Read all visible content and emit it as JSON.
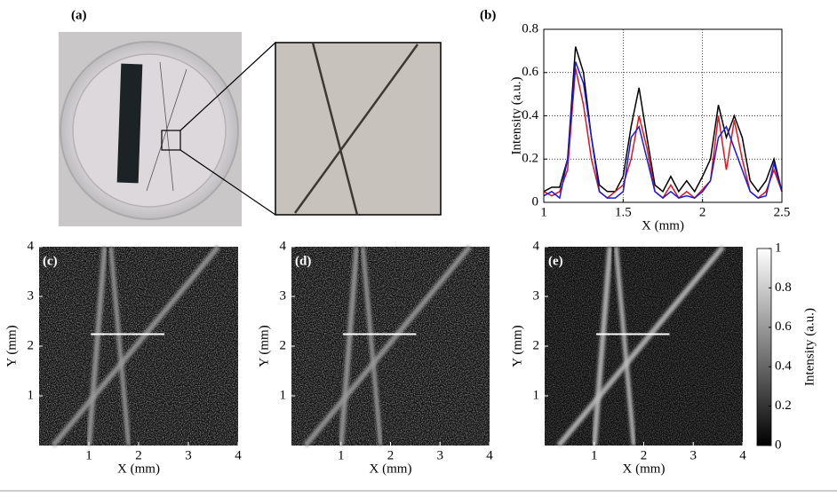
{
  "chart_data": [
    {
      "type": "line",
      "label": "(b)",
      "x_label": "X (mm)",
      "y_label": "Intensity (a.u.)",
      "x": [
        1.0,
        1.05,
        1.1,
        1.15,
        1.2,
        1.25,
        1.3,
        1.35,
        1.4,
        1.45,
        1.5,
        1.55,
        1.6,
        1.65,
        1.7,
        1.75,
        1.8,
        1.85,
        1.9,
        1.95,
        2.0,
        2.05,
        2.1,
        2.15,
        2.2,
        2.25,
        2.3,
        2.35,
        2.4,
        2.45,
        2.5
      ],
      "series": [
        {
          "color": "#000000",
          "values": [
            0.05,
            0.07,
            0.07,
            0.2,
            0.72,
            0.6,
            0.3,
            0.08,
            0.05,
            0.05,
            0.12,
            0.35,
            0.53,
            0.3,
            0.08,
            0.05,
            0.12,
            0.05,
            0.1,
            0.05,
            0.12,
            0.2,
            0.45,
            0.3,
            0.4,
            0.3,
            0.1,
            0.05,
            0.1,
            0.2,
            0.05
          ]
        },
        {
          "color": "#e0141e",
          "values": [
            0.05,
            0.03,
            0.05,
            0.15,
            0.62,
            0.45,
            0.2,
            0.05,
            0.02,
            0.05,
            0.08,
            0.2,
            0.4,
            0.25,
            0.05,
            0.02,
            0.08,
            0.02,
            0.05,
            0.02,
            0.06,
            0.1,
            0.4,
            0.15,
            0.38,
            0.2,
            0.05,
            0.02,
            0.05,
            0.15,
            0.05
          ]
        },
        {
          "color": "#1a1ae0",
          "values": [
            0.03,
            0.05,
            0.02,
            0.2,
            0.65,
            0.55,
            0.3,
            0.05,
            0.02,
            0.02,
            0.05,
            0.3,
            0.35,
            0.2,
            0.05,
            0.02,
            0.05,
            0.02,
            0.03,
            0.02,
            0.05,
            0.1,
            0.3,
            0.35,
            0.25,
            0.15,
            0.05,
            0.02,
            0.03,
            0.18,
            0.05
          ]
        }
      ],
      "xlim": [
        1,
        2.5
      ],
      "xticks": [
        1,
        1.5,
        2,
        2.5
      ],
      "ylim": [
        0,
        0.8
      ],
      "yticks": [
        0,
        0.2,
        0.4,
        0.6,
        0.8
      ],
      "grid": true
    },
    {
      "type": "image",
      "label": "(c)",
      "x_label": "X (mm)",
      "y_label": "Y (mm)",
      "xlim": [
        0,
        4
      ],
      "xticks": [
        1,
        2,
        3,
        4
      ],
      "ylim": [
        0,
        4
      ],
      "yticks": [
        1,
        2,
        3,
        4
      ]
    },
    {
      "type": "image",
      "label": "(d)",
      "x_label": "X (mm)",
      "y_label": "Y (mm)",
      "xlim": [
        0,
        4
      ],
      "xticks": [
        1,
        2,
        3,
        4
      ],
      "ylim": [
        0,
        4
      ],
      "yticks": [
        1,
        2,
        3,
        4
      ]
    },
    {
      "type": "image",
      "label": "(e)",
      "x_label": "X (mm)",
      "y_label": "Y (mm)",
      "xlim": [
        0,
        4
      ],
      "xticks": [
        1,
        2,
        3,
        4
      ],
      "ylim": [
        0,
        4
      ],
      "yticks": [
        1,
        2,
        3,
        4
      ],
      "colorbar": {
        "label": "Intensity (a.u.)",
        "lim": [
          0,
          1
        ],
        "ticks": [
          0,
          0.2,
          0.4,
          0.6,
          0.8,
          1
        ]
      }
    }
  ],
  "photo": {
    "label": "(a)"
  }
}
